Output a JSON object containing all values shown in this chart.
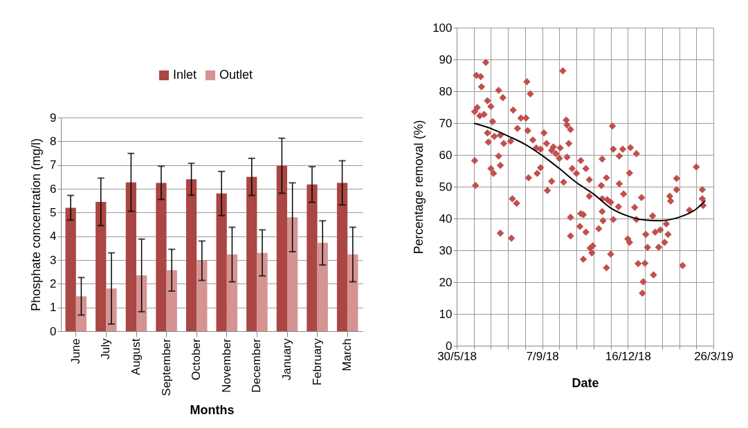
{
  "chart_data": [
    {
      "type": "bar",
      "xlabel": "Months",
      "ylabel": "Phosphate concentration (mg/l)",
      "categories": [
        "June",
        "July",
        "August",
        "September",
        "October",
        "November",
        "December",
        "January",
        "February",
        "March"
      ],
      "series": [
        {
          "name": "Inlet",
          "color": "#aa4643",
          "values": [
            5.2,
            5.45,
            6.27,
            6.25,
            6.4,
            5.8,
            6.5,
            6.97,
            6.18,
            6.25
          ],
          "errors": [
            0.52,
            1.0,
            1.22,
            0.7,
            0.67,
            0.93,
            0.78,
            1.16,
            0.75,
            0.93
          ]
        },
        {
          "name": "Outlet",
          "color": "#d59392",
          "values": [
            1.47,
            1.8,
            2.35,
            2.57,
            2.97,
            3.23,
            3.3,
            4.8,
            3.72,
            3.23
          ],
          "errors": [
            0.79,
            1.5,
            1.53,
            0.88,
            0.83,
            1.15,
            0.97,
            1.45,
            0.93,
            1.15
          ]
        }
      ],
      "ylim": [
        0,
        9
      ],
      "yticks": [
        0,
        1,
        2,
        3,
        4,
        5,
        6,
        7,
        8,
        9
      ],
      "grid": "y",
      "legend": "top"
    },
    {
      "type": "scatter",
      "xlabel": "Date",
      "ylabel": "Percentage removal (%)",
      "marker": "diamond",
      "grid": true,
      "xlim": [
        "2018-05-30",
        "2019-03-26"
      ],
      "xticks": [
        {
          "value": "2018-05-30",
          "label": "30/5/18"
        },
        {
          "value": "2018-06-19",
          "label": null
        },
        {
          "value": "2018-07-09",
          "label": null
        },
        {
          "value": "2018-07-29",
          "label": null
        },
        {
          "value": "2018-08-18",
          "label": null
        },
        {
          "value": "2018-09-07",
          "label": "7/9/18"
        },
        {
          "value": "2018-09-27",
          "label": null
        },
        {
          "value": "2018-10-17",
          "label": null
        },
        {
          "value": "2018-11-06",
          "label": null
        },
        {
          "value": "2018-11-26",
          "label": null
        },
        {
          "value": "2018-12-16",
          "label": "16/12/18"
        },
        {
          "value": "2019-01-05",
          "label": null
        },
        {
          "value": "2019-01-25",
          "label": null
        },
        {
          "value": "2019-02-14",
          "label": null
        },
        {
          "value": "2019-03-06",
          "label": null
        },
        {
          "value": "2019-03-26",
          "label": "26/3/19"
        }
      ],
      "ylim": [
        0,
        100
      ],
      "yticks": [
        0,
        10,
        20,
        30,
        40,
        50,
        60,
        70,
        80,
        90,
        100
      ],
      "series": [
        {
          "color": "#c0504d",
          "x": [
            "2018-06-20",
            "2018-06-23",
            "2018-06-22",
            "2018-06-27",
            "2018-06-28",
            "2018-07-03",
            "2018-06-26",
            "2018-07-01",
            "2018-07-05",
            "2018-07-09",
            "2018-07-11",
            "2018-07-05",
            "2018-07-06",
            "2018-07-13",
            "2018-07-20",
            "2018-07-24",
            "2018-08-01",
            "2018-07-18",
            "2018-07-23",
            "2018-07-18",
            "2018-07-20",
            "2018-07-09",
            "2018-07-12",
            "2018-06-20",
            "2018-06-21",
            "2018-08-04",
            "2018-08-09",
            "2018-08-13",
            "2018-08-19",
            "2018-08-21",
            "2018-08-20",
            "2018-08-24",
            "2018-08-27",
            "2018-08-31",
            "2018-08-22",
            "2018-09-09",
            "2018-09-05",
            "2018-09-12",
            "2018-09-18",
            "2018-09-20",
            "2018-09-23",
            "2018-09-27",
            "2018-09-28",
            "2018-10-06",
            "2018-10-05",
            "2018-10-06",
            "2018-10-10",
            "2018-10-08",
            "2018-10-01",
            "2018-09-05",
            "2018-09-01",
            "2018-09-18",
            "2018-10-02",
            "2018-10-12",
            "2018-10-17",
            "2018-10-22",
            "2018-10-28",
            "2018-11-01",
            "2018-11-16",
            "2018-11-21",
            "2018-11-15",
            "2018-11-28",
            "2018-11-29",
            "2018-12-06",
            "2018-12-10",
            "2018-12-19",
            "2018-12-26",
            "2018-12-18",
            "2018-12-06",
            "2019-02-11",
            "2019-03-06",
            "2019-03-13",
            "2018-08-03",
            "2018-08-08",
            "2018-07-20",
            "2018-08-02",
            "2018-09-13",
            "2018-10-10",
            "2018-10-10",
            "2018-10-22",
            "2018-10-25",
            "2018-10-21",
            "2018-10-28",
            "2018-10-25",
            "2018-11-01",
            "2018-11-02",
            "2018-11-05",
            "2018-11-04",
            "2018-11-12",
            "2018-11-16",
            "2018-11-17",
            "2018-11-16",
            "2018-11-22",
            "2018-11-26",
            "2018-11-29",
            "2018-12-05",
            "2018-12-11",
            "2018-11-21",
            "2018-11-26",
            "2018-12-24",
            "2018-12-26",
            "2019-01-01",
            "2018-12-16",
            "2018-12-18",
            "2018-12-28",
            "2019-01-05",
            "2019-01-03",
            "2019-01-02",
            "2019-01-06",
            "2019-01-08",
            "2019-01-14",
            "2019-01-15",
            "2019-01-17",
            "2019-01-21",
            "2019-01-23",
            "2019-01-28",
            "2019-01-30",
            "2019-02-01",
            "2019-02-03",
            "2019-02-04",
            "2019-02-11",
            "2019-02-26",
            "2019-02-18",
            "2019-03-13",
            "2019-03-14"
          ],
          "values": [
            73.6,
            74.9,
            85,
            84.6,
            81.4,
            89.1,
            72.3,
            72.7,
            77,
            75.2,
            70.5,
            66.9,
            64,
            65.8,
            66.2,
            63.6,
            64.3,
            80.3,
            78,
            59.6,
            56.7,
            55.7,
            54.2,
            58.2,
            50.4,
            74.1,
            68.3,
            71.6,
            71.6,
            67.6,
            83,
            79.2,
            64.7,
            62.2,
            52.8,
            66.9,
            61.8,
            63.6,
            61.4,
            62.5,
            60.4,
            58.9,
            62.2,
            59.3,
            70.9,
            69.4,
            68,
            63.6,
            86.4,
            56,
            54.2,
            51.7,
            51.4,
            55.7,
            54.2,
            58.2,
            55.7,
            52.2,
            58.7,
            52.8,
            50.4,
            69.1,
            61.8,
            59.6,
            61.8,
            62.3,
            60.4,
            54.3,
            50.9,
            52.6,
            56.2,
            49.1,
            46.2,
            44.8,
            35.4,
            33.8,
            48.8,
            40.4,
            34.5,
            41.5,
            41.2,
            37.5,
            35.7,
            27.2,
            47,
            30.7,
            31.4,
            29.2,
            36.8,
            42.2,
            39.3,
            46.2,
            45.9,
            45.1,
            39.7,
            43.7,
            47.7,
            24.5,
            28.8,
            43.5,
            39.7,
            46.6,
            33.6,
            32.5,
            25.8,
            25.9,
            20.1,
            16.5,
            35,
            30.9,
            40.8,
            22.3,
            35.7,
            31,
            36.4,
            32.5,
            38.3,
            35,
            47,
            45.5,
            49.1,
            42.6,
            25.2,
            46.2,
            44.1
          ]
        },
        {
          "type": "line",
          "color": "#000000",
          "marker": "none",
          "x": [
            "2018-06-20",
            "2018-07-09",
            "2018-07-30",
            "2018-08-18",
            "2018-09-08",
            "2018-09-27",
            "2018-10-17",
            "2018-11-06",
            "2018-11-26",
            "2018-12-16",
            "2019-01-06",
            "2019-01-22",
            "2019-02-14",
            "2019-03-06",
            "2019-03-16"
          ],
          "values": [
            69.9,
            68.3,
            65.8,
            63.3,
            59.6,
            55.7,
            51.3,
            47.7,
            43.3,
            40.8,
            39.5,
            39.3,
            40.4,
            43,
            45.5
          ]
        }
      ]
    }
  ]
}
